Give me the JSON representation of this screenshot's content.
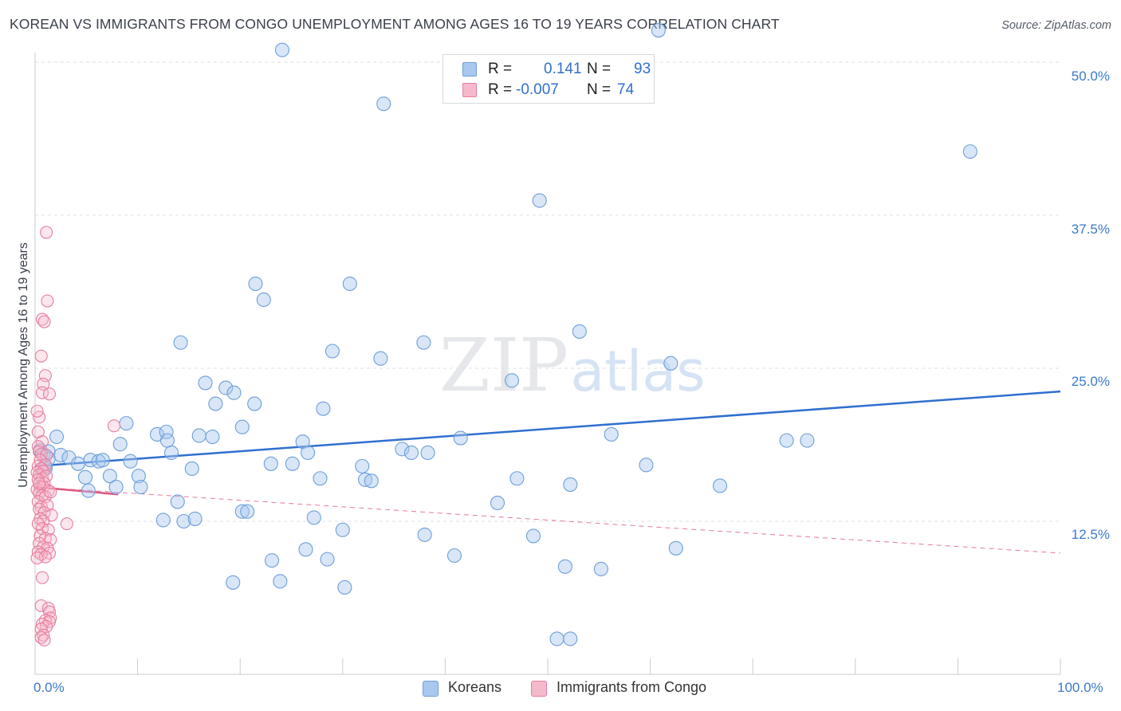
{
  "header": {
    "title": "KOREAN VS IMMIGRANTS FROM CONGO UNEMPLOYMENT AMONG AGES 16 TO 19 YEARS CORRELATION CHART",
    "source": "Source: ZipAtlas.com"
  },
  "watermark": {
    "part1": "ZIP",
    "part2": "atlas"
  },
  "colors": {
    "korean_fill": "#a9c8ef",
    "korean_stroke": "#6e9fd8",
    "korean_line": "#2f6fd0",
    "congo_fill": "#f5b9cc",
    "congo_stroke": "#e67e9f",
    "congo_line": "#e0577f",
    "grid": "#dde1e6",
    "tick_label": "#3c79c9"
  },
  "stats_legend": {
    "rows": [
      {
        "r_label": "R =",
        "r_value": "0.141",
        "n_label": "N =",
        "n_value": "93"
      },
      {
        "r_label": "R =",
        "r_value": "-0.007",
        "n_label": "N =",
        "n_value": "74"
      }
    ]
  },
  "chart_data": {
    "type": "scatter",
    "title": "KOREAN VS IMMIGRANTS FROM CONGO UNEMPLOYMENT AMONG AGES 16 TO 19 YEARS CORRELATION CHART",
    "xlabel": "",
    "ylabel": "Unemployment Among Ages 16 to 19 years",
    "xlim": [
      0,
      100
    ],
    "ylim": [
      0,
      50
    ],
    "x_tick_labels": [
      "0.0%",
      "100.0%"
    ],
    "y_ticks": [
      12.5,
      25.0,
      37.5,
      50.0
    ],
    "y_tick_labels": [
      "12.5%",
      "25.0%",
      "37.5%",
      "50.0%"
    ],
    "legend": [
      "Koreans",
      "Immigrants from Congo"
    ],
    "series": [
      {
        "name": "Koreans",
        "r": 0.141,
        "n": 93,
        "trend": {
          "x": [
            0,
            100
          ],
          "y": [
            17.0,
            23.1
          ]
        },
        "points": [
          [
            24.1,
            51.0
          ],
          [
            34.0,
            46.6
          ],
          [
            60.8,
            52.6
          ],
          [
            91.2,
            42.7
          ],
          [
            49.2,
            38.7
          ],
          [
            21.5,
            31.9
          ],
          [
            30.7,
            31.9
          ],
          [
            22.3,
            30.6
          ],
          [
            53.1,
            28.0
          ],
          [
            14.2,
            27.1
          ],
          [
            29.0,
            26.4
          ],
          [
            33.7,
            25.8
          ],
          [
            37.9,
            27.1
          ],
          [
            62.0,
            25.4
          ],
          [
            46.5,
            24.0
          ],
          [
            16.6,
            23.8
          ],
          [
            18.6,
            23.4
          ],
          [
            19.4,
            23.0
          ],
          [
            17.6,
            22.1
          ],
          [
            21.4,
            22.1
          ],
          [
            28.1,
            21.7
          ],
          [
            2.1,
            19.4
          ],
          [
            8.9,
            20.5
          ],
          [
            11.9,
            19.6
          ],
          [
            12.8,
            19.8
          ],
          [
            16.0,
            19.5
          ],
          [
            17.3,
            19.4
          ],
          [
            20.2,
            20.2
          ],
          [
            8.3,
            18.8
          ],
          [
            12.9,
            19.1
          ],
          [
            26.1,
            19.0
          ],
          [
            41.5,
            19.3
          ],
          [
            56.2,
            19.6
          ],
          [
            73.3,
            19.1
          ],
          [
            75.3,
            19.1
          ],
          [
            0.5,
            18.3
          ],
          [
            0.8,
            17.9
          ],
          [
            1.3,
            18.2
          ],
          [
            2.5,
            17.9
          ],
          [
            3.3,
            17.7
          ],
          [
            5.4,
            17.5
          ],
          [
            6.2,
            17.4
          ],
          [
            6.6,
            17.5
          ],
          [
            9.3,
            17.4
          ],
          [
            13.3,
            18.1
          ],
          [
            26.6,
            18.1
          ],
          [
            35.8,
            18.4
          ],
          [
            36.7,
            18.1
          ],
          [
            38.3,
            18.1
          ],
          [
            4.2,
            17.2
          ],
          [
            1.0,
            17.0
          ],
          [
            15.3,
            16.8
          ],
          [
            23.0,
            17.2
          ],
          [
            25.1,
            17.2
          ],
          [
            31.9,
            17.0
          ],
          [
            59.6,
            17.1
          ],
          [
            4.9,
            16.1
          ],
          [
            7.3,
            16.2
          ],
          [
            10.1,
            16.2
          ],
          [
            27.8,
            16.0
          ],
          [
            32.2,
            15.9
          ],
          [
            32.8,
            15.8
          ],
          [
            47.0,
            16.0
          ],
          [
            52.2,
            15.5
          ],
          [
            66.8,
            15.4
          ],
          [
            5.2,
            15.0
          ],
          [
            7.9,
            15.3
          ],
          [
            10.3,
            15.3
          ],
          [
            13.9,
            14.1
          ],
          [
            1.0,
            16.8
          ],
          [
            45.1,
            14.0
          ],
          [
            20.2,
            13.3
          ],
          [
            20.7,
            13.3
          ],
          [
            27.2,
            12.8
          ],
          [
            12.5,
            12.6
          ],
          [
            14.5,
            12.5
          ],
          [
            15.6,
            12.7
          ],
          [
            30.0,
            11.8
          ],
          [
            38.0,
            11.4
          ],
          [
            48.6,
            11.3
          ],
          [
            26.4,
            10.2
          ],
          [
            62.5,
            10.3
          ],
          [
            40.9,
            9.7
          ],
          [
            23.1,
            9.3
          ],
          [
            28.5,
            9.4
          ],
          [
            51.7,
            8.8
          ],
          [
            55.2,
            8.6
          ],
          [
            19.3,
            7.5
          ],
          [
            23.9,
            7.6
          ],
          [
            30.2,
            7.1
          ],
          [
            50.9,
            2.9
          ],
          [
            52.2,
            2.9
          ],
          [
            1.3,
            17.6
          ]
        ]
      },
      {
        "name": "Immigrants from Congo",
        "r": -0.007,
        "n": 74,
        "trend": {
          "x": [
            0,
            8.1
          ],
          "y": [
            15.3,
            14.7
          ]
        },
        "trend_dashed": {
          "x": [
            0,
            100
          ],
          "y": [
            15.3,
            9.9
          ]
        },
        "points": [
          [
            1.1,
            36.1
          ],
          [
            1.2,
            30.5
          ],
          [
            0.7,
            29.0
          ],
          [
            0.9,
            28.8
          ],
          [
            0.6,
            26.0
          ],
          [
            1.0,
            24.4
          ],
          [
            0.8,
            23.7
          ],
          [
            0.7,
            23.0
          ],
          [
            1.4,
            22.9
          ],
          [
            0.4,
            21.0
          ],
          [
            0.2,
            21.5
          ],
          [
            7.7,
            20.3
          ],
          [
            0.3,
            19.8
          ],
          [
            0.7,
            19.0
          ],
          [
            0.3,
            18.6
          ],
          [
            0.4,
            18.2
          ],
          [
            0.6,
            18.0
          ],
          [
            1.1,
            17.9
          ],
          [
            0.5,
            17.5
          ],
          [
            0.3,
            17.0
          ],
          [
            1.0,
            17.1
          ],
          [
            0.6,
            16.8
          ],
          [
            0.2,
            16.5
          ],
          [
            0.8,
            16.6
          ],
          [
            0.4,
            16.3
          ],
          [
            0.7,
            16.0
          ],
          [
            1.1,
            16.2
          ],
          [
            0.3,
            15.9
          ],
          [
            0.9,
            15.6
          ],
          [
            0.5,
            15.3
          ],
          [
            0.2,
            15.1
          ],
          [
            0.8,
            15.3
          ],
          [
            1.3,
            15.0
          ],
          [
            0.4,
            14.8
          ],
          [
            0.7,
            14.6
          ],
          [
            1.0,
            14.5
          ],
          [
            0.3,
            14.1
          ],
          [
            1.5,
            14.9
          ],
          [
            0.6,
            13.7
          ],
          [
            1.2,
            13.8
          ],
          [
            0.4,
            13.5
          ],
          [
            0.9,
            13.2
          ],
          [
            1.6,
            13.0
          ],
          [
            0.5,
            12.7
          ],
          [
            0.8,
            12.5
          ],
          [
            3.1,
            12.3
          ],
          [
            0.3,
            12.3
          ],
          [
            0.7,
            11.9
          ],
          [
            1.3,
            11.8
          ],
          [
            0.5,
            11.3
          ],
          [
            1.0,
            11.1
          ],
          [
            1.5,
            11.0
          ],
          [
            0.4,
            10.7
          ],
          [
            0.8,
            10.4
          ],
          [
            1.2,
            10.3
          ],
          [
            0.3,
            10.0
          ],
          [
            1.4,
            9.9
          ],
          [
            0.6,
            9.8
          ],
          [
            1.0,
            9.6
          ],
          [
            0.2,
            9.5
          ],
          [
            0.7,
            7.9
          ],
          [
            0.6,
            5.6
          ],
          [
            1.3,
            5.4
          ],
          [
            1.4,
            5.1
          ],
          [
            1.5,
            4.6
          ],
          [
            1.0,
            4.4
          ],
          [
            1.4,
            4.3
          ],
          [
            0.7,
            4.1
          ],
          [
            1.1,
            3.9
          ],
          [
            0.6,
            3.7
          ],
          [
            0.8,
            3.2
          ],
          [
            0.6,
            3.0
          ],
          [
            0.9,
            2.8
          ],
          [
            0.4,
            15.6
          ]
        ]
      }
    ]
  }
}
